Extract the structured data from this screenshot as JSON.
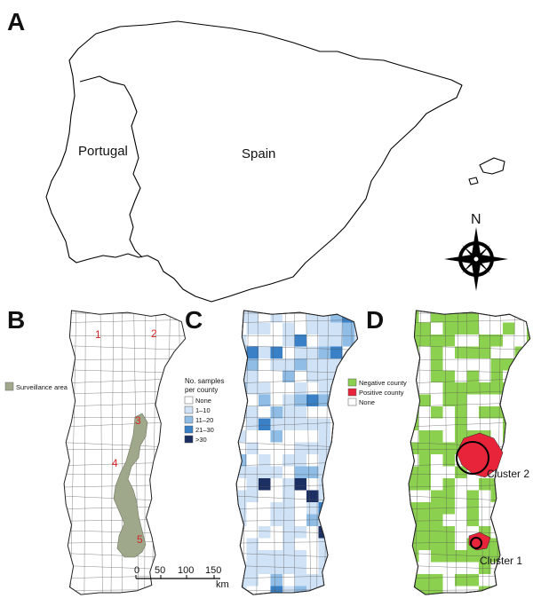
{
  "panels": {
    "a": {
      "letter": "A",
      "labels": {
        "portugal": "Portugal",
        "spain": "Spain"
      },
      "compass": "N"
    },
    "b": {
      "letter": "B",
      "legend": {
        "item": "Surveillance area",
        "color": "#9fa88a"
      },
      "points": [
        "1",
        "2",
        "3",
        "4",
        "5"
      ],
      "scale": {
        "ticks": [
          "0",
          "50",
          "100",
          "150"
        ],
        "unit": "km"
      }
    },
    "c": {
      "letter": "C",
      "legend": {
        "title_line1": "No. samples",
        "title_line2": "per county",
        "items": [
          {
            "label": "None",
            "color": "#ffffff"
          },
          {
            "label": "1–10",
            "color": "#cfe2f6"
          },
          {
            "label": "11–20",
            "color": "#8fbde6"
          },
          {
            "label": "21–30",
            "color": "#3a80c6"
          },
          {
            "label": ">30",
            "color": "#1b2f63"
          }
        ]
      }
    },
    "d": {
      "letter": "D",
      "legend": {
        "items": [
          {
            "label": "Negative county",
            "color": "#8cd04f"
          },
          {
            "label": "Positive county",
            "color": "#e8243b"
          },
          {
            "label": "None",
            "color": "#ffffff"
          }
        ]
      },
      "clusters": [
        "Cluster 2",
        "Cluster 1"
      ]
    }
  }
}
